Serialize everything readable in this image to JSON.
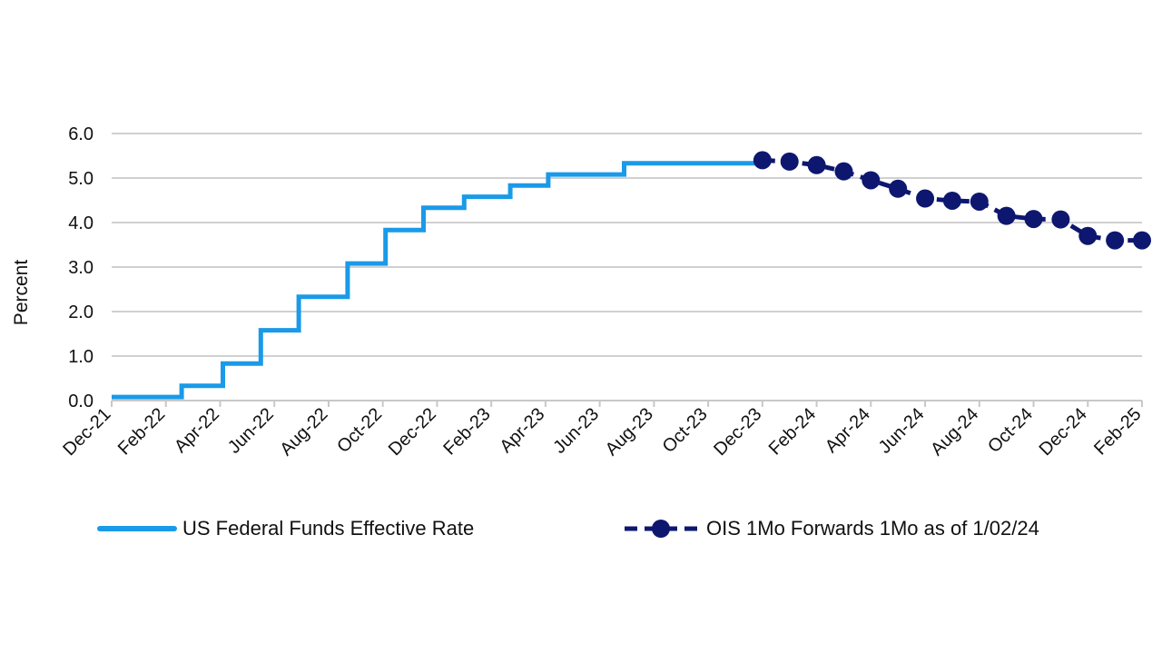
{
  "chart_data": {
    "type": "line",
    "title": "",
    "xlabel": "",
    "ylabel": "Percent",
    "ylim": [
      0,
      6
    ],
    "yticks": [
      "0.0",
      "1.0",
      "2.0",
      "3.0",
      "4.0",
      "5.0",
      "6.0"
    ],
    "grid": true,
    "legend_position": "bottom",
    "x_tick_labels": [
      "Dec-21",
      "Feb-22",
      "Apr-22",
      "Jun-22",
      "Aug-22",
      "Oct-22",
      "Dec-22",
      "Feb-23",
      "Apr-23",
      "Jun-23",
      "Aug-23",
      "Oct-23",
      "Dec-23",
      "Feb-24",
      "Apr-24",
      "Jun-24",
      "Aug-24",
      "Oct-24",
      "Dec-24",
      "Feb-25"
    ],
    "series": [
      {
        "name": "US Federal Funds Effective Rate",
        "style": "step-line",
        "color": "#1a9ae8",
        "points": [
          {
            "x": 0.0,
            "y": 0.08
          },
          {
            "x": 2.58,
            "y": 0.08
          },
          {
            "x": 2.58,
            "y": 0.33
          },
          {
            "x": 4.1,
            "y": 0.33
          },
          {
            "x": 4.1,
            "y": 0.83
          },
          {
            "x": 5.5,
            "y": 0.83
          },
          {
            "x": 5.5,
            "y": 1.58
          },
          {
            "x": 6.9,
            "y": 1.58
          },
          {
            "x": 6.9,
            "y": 2.33
          },
          {
            "x": 8.7,
            "y": 2.33
          },
          {
            "x": 8.7,
            "y": 3.08
          },
          {
            "x": 10.1,
            "y": 3.08
          },
          {
            "x": 10.1,
            "y": 3.83
          },
          {
            "x": 11.5,
            "y": 3.83
          },
          {
            "x": 11.5,
            "y": 4.33
          },
          {
            "x": 13.0,
            "y": 4.33
          },
          {
            "x": 13.0,
            "y": 4.58
          },
          {
            "x": 14.7,
            "y": 4.58
          },
          {
            "x": 14.7,
            "y": 4.83
          },
          {
            "x": 16.1,
            "y": 4.83
          },
          {
            "x": 16.1,
            "y": 5.08
          },
          {
            "x": 18.9,
            "y": 5.08
          },
          {
            "x": 18.9,
            "y": 5.33
          },
          {
            "x": 24.0,
            "y": 5.33
          }
        ]
      },
      {
        "name": "OIS 1Mo Forwards 1Mo as of 1/02/24",
        "style": "dashed-markers",
        "color": "#0d1770",
        "points": [
          {
            "x": 24.0,
            "y": 5.4
          },
          {
            "x": 25.0,
            "y": 5.37
          },
          {
            "x": 26.0,
            "y": 5.29
          },
          {
            "x": 27.0,
            "y": 5.15
          },
          {
            "x": 28.0,
            "y": 4.95
          },
          {
            "x": 29.0,
            "y": 4.76
          },
          {
            "x": 30.0,
            "y": 4.54
          },
          {
            "x": 31.0,
            "y": 4.49
          },
          {
            "x": 32.0,
            "y": 4.47
          },
          {
            "x": 33.0,
            "y": 4.15
          },
          {
            "x": 34.0,
            "y": 4.08
          },
          {
            "x": 35.0,
            "y": 4.07
          },
          {
            "x": 36.0,
            "y": 3.7
          },
          {
            "x": 37.0,
            "y": 3.6
          },
          {
            "x": 38.0,
            "y": 3.6
          }
        ]
      }
    ],
    "legend": {
      "ffr_label": "US Federal Funds Effective Rate",
      "ois_label": "OIS 1Mo Forwards 1Mo as of 1/02/24"
    }
  },
  "colors": {
    "ffr": "#1a9ae8",
    "ois": "#0d1770",
    "grid": "#d0d0d0",
    "axis": "#c8c8c8"
  }
}
